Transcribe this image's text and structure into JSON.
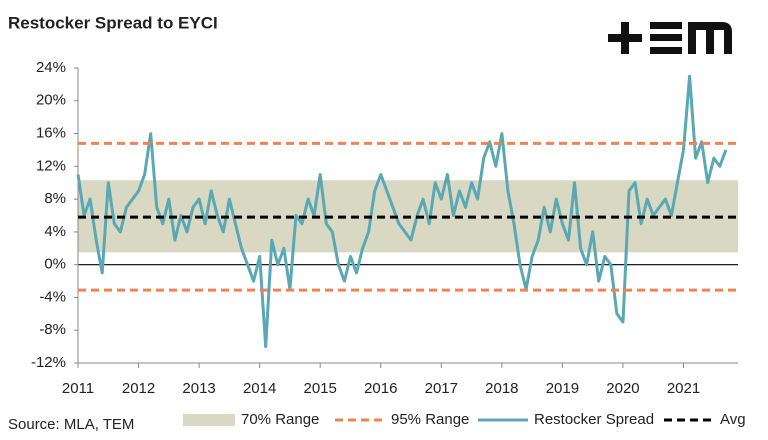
{
  "chart_data": {
    "type": "line",
    "title": "Restocker Spread to EYCI",
    "source": "Source: MLA, TEM",
    "x": [
      2011.0,
      2011.1,
      2011.2,
      2011.3,
      2011.4,
      2011.5,
      2011.6,
      2011.7,
      2011.8,
      2011.9,
      2012.0,
      2012.1,
      2012.2,
      2012.3,
      2012.4,
      2012.5,
      2012.6,
      2012.7,
      2012.8,
      2012.9,
      2013.0,
      2013.1,
      2013.2,
      2013.3,
      2013.4,
      2013.5,
      2013.6,
      2013.7,
      2013.8,
      2013.9,
      2014.0,
      2014.1,
      2014.2,
      2014.3,
      2014.4,
      2014.5,
      2014.6,
      2014.7,
      2014.8,
      2014.9,
      2015.0,
      2015.1,
      2015.2,
      2015.3,
      2015.4,
      2015.5,
      2015.6,
      2015.7,
      2015.8,
      2015.9,
      2016.0,
      2016.1,
      2016.2,
      2016.3,
      2016.4,
      2016.5,
      2016.6,
      2016.7,
      2016.8,
      2016.9,
      2017.0,
      2017.1,
      2017.2,
      2017.3,
      2017.4,
      2017.5,
      2017.6,
      2017.7,
      2017.8,
      2017.9,
      2018.0,
      2018.1,
      2018.2,
      2018.3,
      2018.4,
      2018.5,
      2018.6,
      2018.7,
      2018.8,
      2018.9,
      2019.0,
      2019.1,
      2019.2,
      2019.3,
      2019.4,
      2019.5,
      2019.6,
      2019.7,
      2019.8,
      2019.9,
      2020.0,
      2020.1,
      2020.2,
      2020.3,
      2020.4,
      2020.5,
      2020.6,
      2020.7,
      2020.8,
      2020.9,
      2021.0,
      2021.1,
      2021.2,
      2021.3,
      2021.4,
      2021.5,
      2021.6,
      2021.7
    ],
    "series": [
      {
        "name": "Restocker Spread",
        "color": "#5ba8b5",
        "values": [
          11,
          6,
          8,
          3,
          -1,
          10,
          5,
          4,
          7,
          8,
          9,
          11,
          16,
          7,
          5,
          8,
          3,
          6,
          4,
          7,
          8,
          5,
          9,
          6,
          4,
          8,
          5,
          2,
          0,
          -2,
          1,
          -10,
          3,
          0,
          2,
          -3,
          6,
          5,
          8,
          6,
          11,
          5,
          4,
          0,
          -2,
          1,
          -1,
          2,
          4,
          9,
          11,
          9,
          7,
          5,
          4,
          3,
          6,
          8,
          5,
          10,
          8,
          11,
          6,
          9,
          7,
          10,
          8,
          13,
          15,
          12,
          16,
          9,
          5,
          0,
          -3,
          1,
          3,
          7,
          4,
          8,
          5,
          3,
          10,
          2,
          0,
          4,
          -2,
          1,
          0,
          -6,
          -7,
          9,
          10,
          5,
          8,
          6,
          7,
          8,
          6,
          10,
          14,
          23,
          13,
          15,
          10,
          13,
          12,
          14
        ]
      }
    ],
    "reference_bands": [
      {
        "name": "70% Range",
        "color": "#d9d8c2",
        "values": [
          1.5,
          10.3
        ]
      }
    ],
    "reference_lines": [
      {
        "name": "95% Range",
        "color": "#f08350",
        "values": [
          14.8,
          -3.1
        ]
      },
      {
        "name": "Avg",
        "color": "#000000",
        "values": [
          5.8
        ]
      }
    ],
    "xlim": [
      2011,
      2021.9
    ],
    "xticks": [
      2011,
      2012,
      2013,
      2014,
      2015,
      2016,
      2017,
      2018,
      2019,
      2020,
      2021
    ],
    "ylim": [
      -12,
      24
    ],
    "yticks": [
      {
        "value": -12,
        "label": "-12%"
      },
      {
        "value": -8,
        "label": "-8%"
      },
      {
        "value": -4,
        "label": "-4%"
      },
      {
        "value": 0,
        "label": "0%"
      },
      {
        "value": 4,
        "label": "4%"
      },
      {
        "value": 8,
        "label": "8%"
      },
      {
        "value": 12,
        "label": "12%"
      },
      {
        "value": 16,
        "label": "16%"
      },
      {
        "value": 20,
        "label": "20%"
      },
      {
        "value": 24,
        "label": "24%"
      }
    ]
  }
}
